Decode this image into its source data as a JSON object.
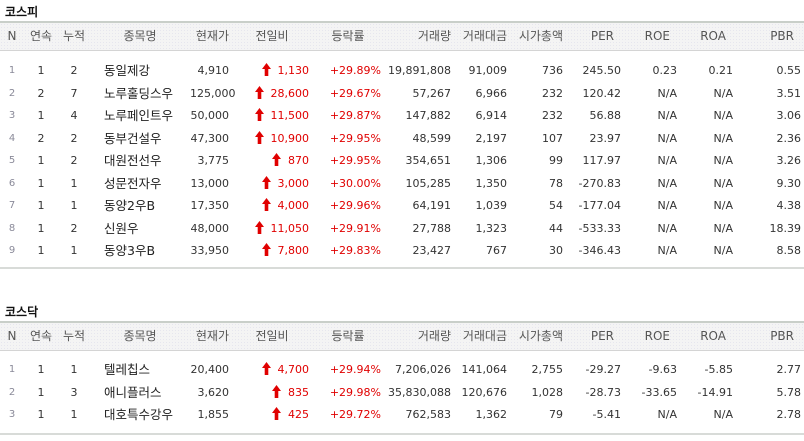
{
  "columns": [
    "N",
    "연속",
    "누적",
    "종목명",
    "현재가",
    "전일비",
    "등락률",
    "거래량",
    "거래대금",
    "시가총액",
    "PER",
    "ROE",
    "ROA",
    "PBR"
  ],
  "colors": {
    "up": "#e00000",
    "text": "#333333"
  },
  "change_icon": "red-up-arrow-icon",
  "sections": [
    {
      "title": "코스피",
      "rows": [
        [
          "1",
          "1",
          "2",
          "동일제강",
          "4,910",
          "1,130",
          "+29.89%",
          "19,891,808",
          "91,009",
          "736",
          "245.50",
          "0.23",
          "0.21",
          "0.55"
        ],
        [
          "2",
          "2",
          "7",
          "노루홀딩스우",
          "125,000",
          "28,600",
          "+29.67%",
          "57,267",
          "6,966",
          "232",
          "120.42",
          "N/A",
          "N/A",
          "3.51"
        ],
        [
          "3",
          "1",
          "4",
          "노루페인트우",
          "50,000",
          "11,500",
          "+29.87%",
          "147,882",
          "6,914",
          "232",
          "56.88",
          "N/A",
          "N/A",
          "3.06"
        ],
        [
          "4",
          "2",
          "2",
          "동부건설우",
          "47,300",
          "10,900",
          "+29.95%",
          "48,599",
          "2,197",
          "107",
          "23.97",
          "N/A",
          "N/A",
          "2.36"
        ],
        [
          "5",
          "1",
          "2",
          "대원전선우",
          "3,775",
          "870",
          "+29.95%",
          "354,651",
          "1,306",
          "99",
          "117.97",
          "N/A",
          "N/A",
          "3.26"
        ],
        [
          "6",
          "1",
          "1",
          "성문전자우",
          "13,000",
          "3,000",
          "+30.00%",
          "105,285",
          "1,350",
          "78",
          "-270.83",
          "N/A",
          "N/A",
          "9.30"
        ],
        [
          "7",
          "1",
          "1",
          "동양2우B",
          "17,350",
          "4,000",
          "+29.96%",
          "64,191",
          "1,039",
          "54",
          "-177.04",
          "N/A",
          "N/A",
          "4.38"
        ],
        [
          "8",
          "1",
          "2",
          "신원우",
          "48,000",
          "11,050",
          "+29.91%",
          "27,788",
          "1,323",
          "44",
          "-533.33",
          "N/A",
          "N/A",
          "18.39"
        ],
        [
          "9",
          "1",
          "1",
          "동양3우B",
          "33,950",
          "7,800",
          "+29.83%",
          "23,427",
          "767",
          "30",
          "-346.43",
          "N/A",
          "N/A",
          "8.58"
        ]
      ]
    },
    {
      "title": "코스닥",
      "rows": [
        [
          "1",
          "1",
          "1",
          "텔레칩스",
          "20,400",
          "4,700",
          "+29.94%",
          "7,206,026",
          "141,064",
          "2,755",
          "-29.27",
          "-9.63",
          "-5.85",
          "2.77"
        ],
        [
          "2",
          "1",
          "3",
          "애니플러스",
          "3,620",
          "835",
          "+29.98%",
          "35,830,088",
          "120,676",
          "1,028",
          "-28.73",
          "-33.65",
          "-14.91",
          "5.78"
        ],
        [
          "3",
          "1",
          "1",
          "대호특수강우",
          "1,855",
          "425",
          "+29.72%",
          "762,583",
          "1,362",
          "79",
          "-5.41",
          "N/A",
          "N/A",
          "2.78"
        ]
      ]
    }
  ]
}
